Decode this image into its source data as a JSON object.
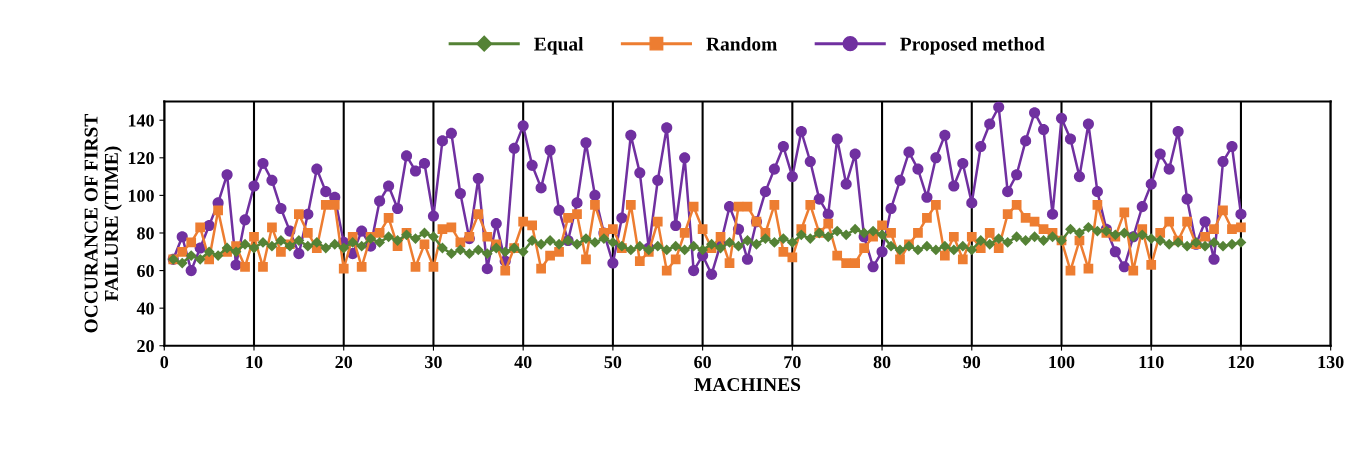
{
  "chart_data": {
    "type": "line",
    "xlabel": "MACHINES",
    "ylabel": "OCCURANCE OF FIRST\nFAILURE (TIME)",
    "x": [
      1,
      2,
      3,
      4,
      5,
      6,
      7,
      8,
      9,
      10,
      11,
      12,
      13,
      14,
      15,
      16,
      17,
      18,
      19,
      20,
      21,
      22,
      23,
      24,
      25,
      26,
      27,
      28,
      29,
      30,
      31,
      32,
      33,
      34,
      35,
      36,
      37,
      38,
      39,
      40,
      41,
      42,
      43,
      44,
      45,
      46,
      47,
      48,
      49,
      50,
      51,
      52,
      53,
      54,
      55,
      56,
      57,
      58,
      59,
      60,
      61,
      62,
      63,
      64,
      65,
      66,
      67,
      68,
      69,
      70,
      71,
      72,
      73,
      74,
      75,
      76,
      77,
      78,
      79,
      80,
      81,
      82,
      83,
      84,
      85,
      86,
      87,
      88,
      89,
      90,
      91,
      92,
      93,
      94,
      95,
      96,
      97,
      98,
      99,
      100,
      101,
      102,
      103,
      104,
      105,
      106,
      107,
      108,
      109,
      110,
      111,
      112,
      113,
      114,
      115,
      116,
      117,
      118,
      119,
      120
    ],
    "series": [
      {
        "name": "Equal",
        "color": "#548235",
        "marker": "diamond",
        "values": [
          66,
          64,
          68,
          66,
          70,
          68,
          72,
          70,
          74,
          72,
          75,
          73,
          76,
          73,
          76,
          73,
          75,
          72,
          74,
          72,
          75,
          73,
          77,
          75,
          78,
          76,
          79,
          77,
          80,
          78,
          72,
          69,
          71,
          69,
          71,
          69,
          72,
          70,
          72,
          70,
          76,
          74,
          76,
          74,
          76,
          74,
          77,
          75,
          77,
          75,
          73,
          71,
          73,
          71,
          73,
          71,
          73,
          71,
          73,
          71,
          74,
          72,
          75,
          73,
          76,
          74,
          77,
          75,
          77,
          75,
          79,
          77,
          80,
          78,
          81,
          79,
          82,
          80,
          81,
          79,
          73,
          71,
          73,
          71,
          73,
          71,
          73,
          71,
          73,
          71,
          76,
          74,
          77,
          75,
          78,
          76,
          78,
          76,
          78,
          76,
          82,
          80,
          83,
          81,
          81,
          79,
          80,
          78,
          79,
          77,
          76,
          74,
          75,
          73,
          75,
          73,
          75,
          73,
          74,
          75
        ]
      },
      {
        "name": "Random",
        "color": "#ed7d31",
        "marker": "square",
        "values": [
          66,
          70,
          75,
          83,
          66,
          92,
          70,
          73,
          62,
          78,
          62,
          83,
          70,
          74,
          90,
          80,
          72,
          95,
          95,
          61,
          78,
          62,
          78,
          80,
          88,
          73,
          80,
          62,
          74,
          62,
          82,
          83,
          75,
          78,
          90,
          78,
          74,
          60,
          72,
          86,
          84,
          61,
          68,
          70,
          88,
          90,
          66,
          95,
          80,
          82,
          72,
          95,
          65,
          70,
          86,
          60,
          66,
          80,
          94,
          82,
          72,
          78,
          64,
          94,
          94,
          86,
          80,
          95,
          70,
          67,
          82,
          95,
          80,
          85,
          68,
          64,
          64,
          72,
          78,
          84,
          80,
          66,
          74,
          80,
          88,
          95,
          68,
          78,
          66,
          78,
          72,
          80,
          72,
          90,
          95,
          88,
          86,
          82,
          80,
          76,
          60,
          76,
          61,
          95,
          80,
          78,
          91,
          60,
          82,
          63,
          80,
          86,
          76,
          86,
          74,
          78,
          82,
          92,
          82,
          83
        ]
      },
      {
        "name": "Proposed method",
        "color": "#7030a0",
        "marker": "circle",
        "values": [
          66,
          78,
          60,
          72,
          84,
          96,
          111,
          63,
          87,
          105,
          117,
          108,
          93,
          81,
          69,
          90,
          114,
          102,
          99,
          75,
          69,
          81,
          73,
          97,
          105,
          93,
          121,
          113,
          117,
          89,
          129,
          133,
          101,
          77,
          109,
          61,
          85,
          65,
          125,
          137,
          116,
          104,
          124,
          92,
          76,
          96,
          128,
          100,
          80,
          64,
          88,
          132,
          112,
          72,
          108,
          136,
          84,
          120,
          60,
          68,
          58,
          74,
          94,
          82,
          66,
          86,
          102,
          114,
          126,
          110,
          134,
          118,
          98,
          90,
          130,
          106,
          122,
          78,
          62,
          70,
          93,
          108,
          123,
          114,
          99,
          120,
          132,
          105,
          117,
          96,
          126,
          138,
          147,
          102,
          111,
          129,
          144,
          135,
          90,
          141,
          130,
          110,
          138,
          102,
          82,
          70,
          62,
          78,
          94,
          106,
          122,
          114,
          134,
          98,
          74,
          86,
          66,
          118,
          126,
          90
        ]
      }
    ],
    "xlim": [
      0,
      130
    ],
    "xticks": [
      0,
      10,
      20,
      30,
      40,
      50,
      60,
      70,
      80,
      90,
      100,
      110,
      120,
      130
    ],
    "ylim": [
      20,
      150
    ],
    "yticks": [
      20,
      40,
      60,
      80,
      100,
      120,
      140
    ],
    "grid": "x",
    "legend": "top",
    "line_style": "solid"
  }
}
